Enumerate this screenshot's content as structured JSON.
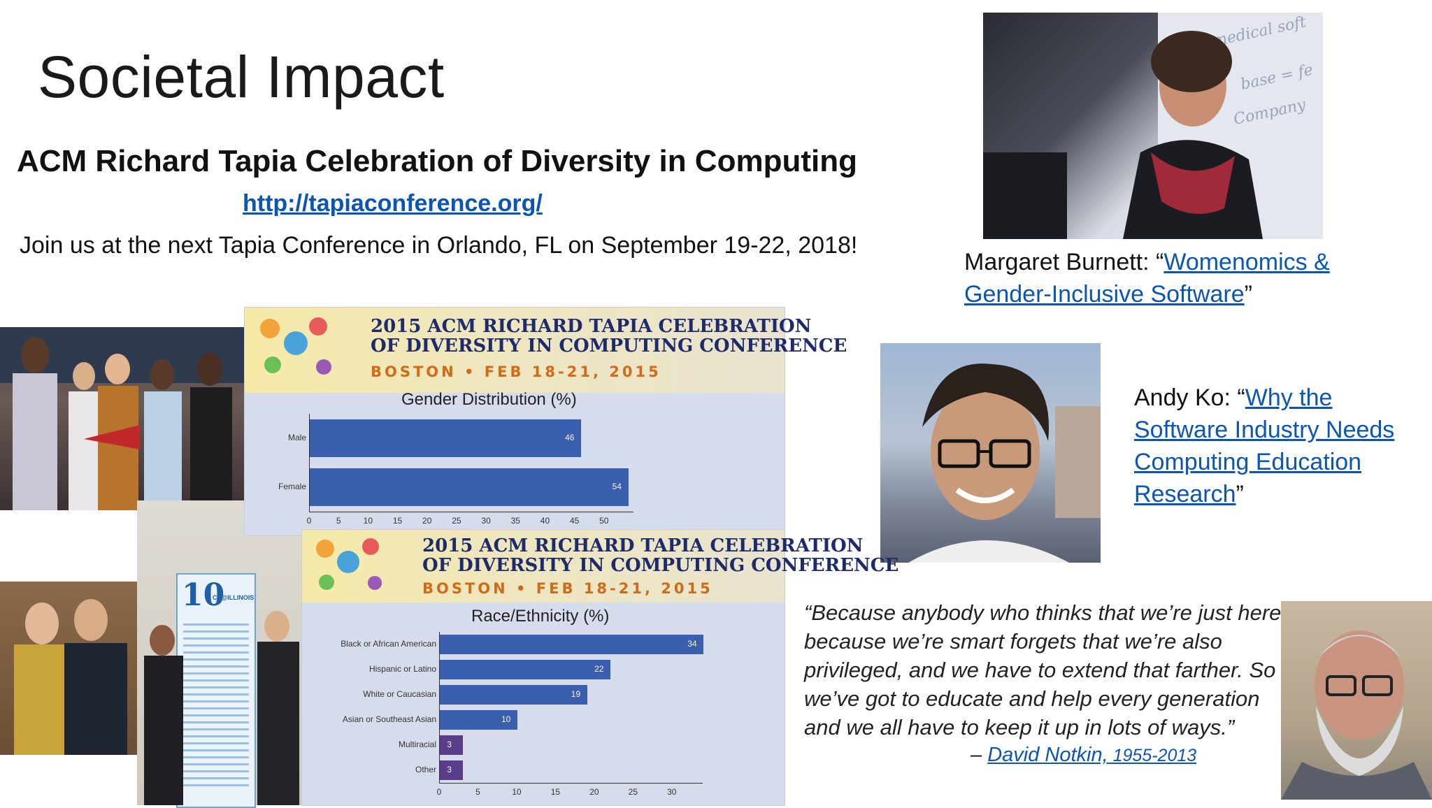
{
  "slide": {
    "title": "Societal Impact",
    "subtitle": "ACM Richard Tapia Celebration of Diversity in Computing",
    "link": "http://tapiaconference.org/",
    "join_text": "Join us at the next Tapia Conference in Orlando, FL on September 19-22, 2018!"
  },
  "people": {
    "burnett": {
      "name_prefix": "Margaret Burnett: “",
      "link": "Womenomics & Gender-Inclusive Software",
      "suffix": "”"
    },
    "ko": {
      "name_prefix": "Andy Ko: “",
      "link": "Why the Software Industry Needs Computing Education Research",
      "suffix": "”"
    }
  },
  "quote": {
    "text": "“Because anybody who thinks that we’re just here because we’re smart forgets that we’re also privileged, and we have to extend that farther. So we’ve got to educate and help every generation and we all have to keep it up in lots of ways.”",
    "dash": "– ",
    "author": "David Notkin,",
    "years": " 1955-2013"
  },
  "posters": {
    "banner_line1": "2015 ACM RICHARD TAPIA CELEBRATION",
    "banner_line2": "OF DIVERSITY IN COMPUTING CONFERENCE",
    "banner_sub": "BOSTON • FEB 18-21, 2015",
    "poster_side_num": "10",
    "poster_side_text": "CS@ILLINOIS"
  },
  "chart_data": [
    {
      "type": "bar",
      "orientation": "horizontal",
      "title": "Gender Distribution (%)",
      "categories": [
        "Male",
        "Female"
      ],
      "values": [
        46,
        54
      ],
      "xlim": [
        0,
        55
      ],
      "xticks": [
        0,
        5,
        10,
        15,
        20,
        25,
        30,
        35,
        40,
        45,
        50
      ]
    },
    {
      "type": "bar",
      "orientation": "horizontal",
      "title": "Race/Ethnicity (%)",
      "categories": [
        "Black or African American",
        "Hispanic or Latino",
        "White or Caucasian",
        "Asian or Southeast Asian",
        "Multiracial",
        "Other"
      ],
      "values": [
        34,
        22,
        19,
        10,
        3,
        3
      ],
      "xlim": [
        0,
        34
      ],
      "xticks": [
        0,
        5,
        10,
        15,
        20,
        25,
        30
      ]
    }
  ]
}
